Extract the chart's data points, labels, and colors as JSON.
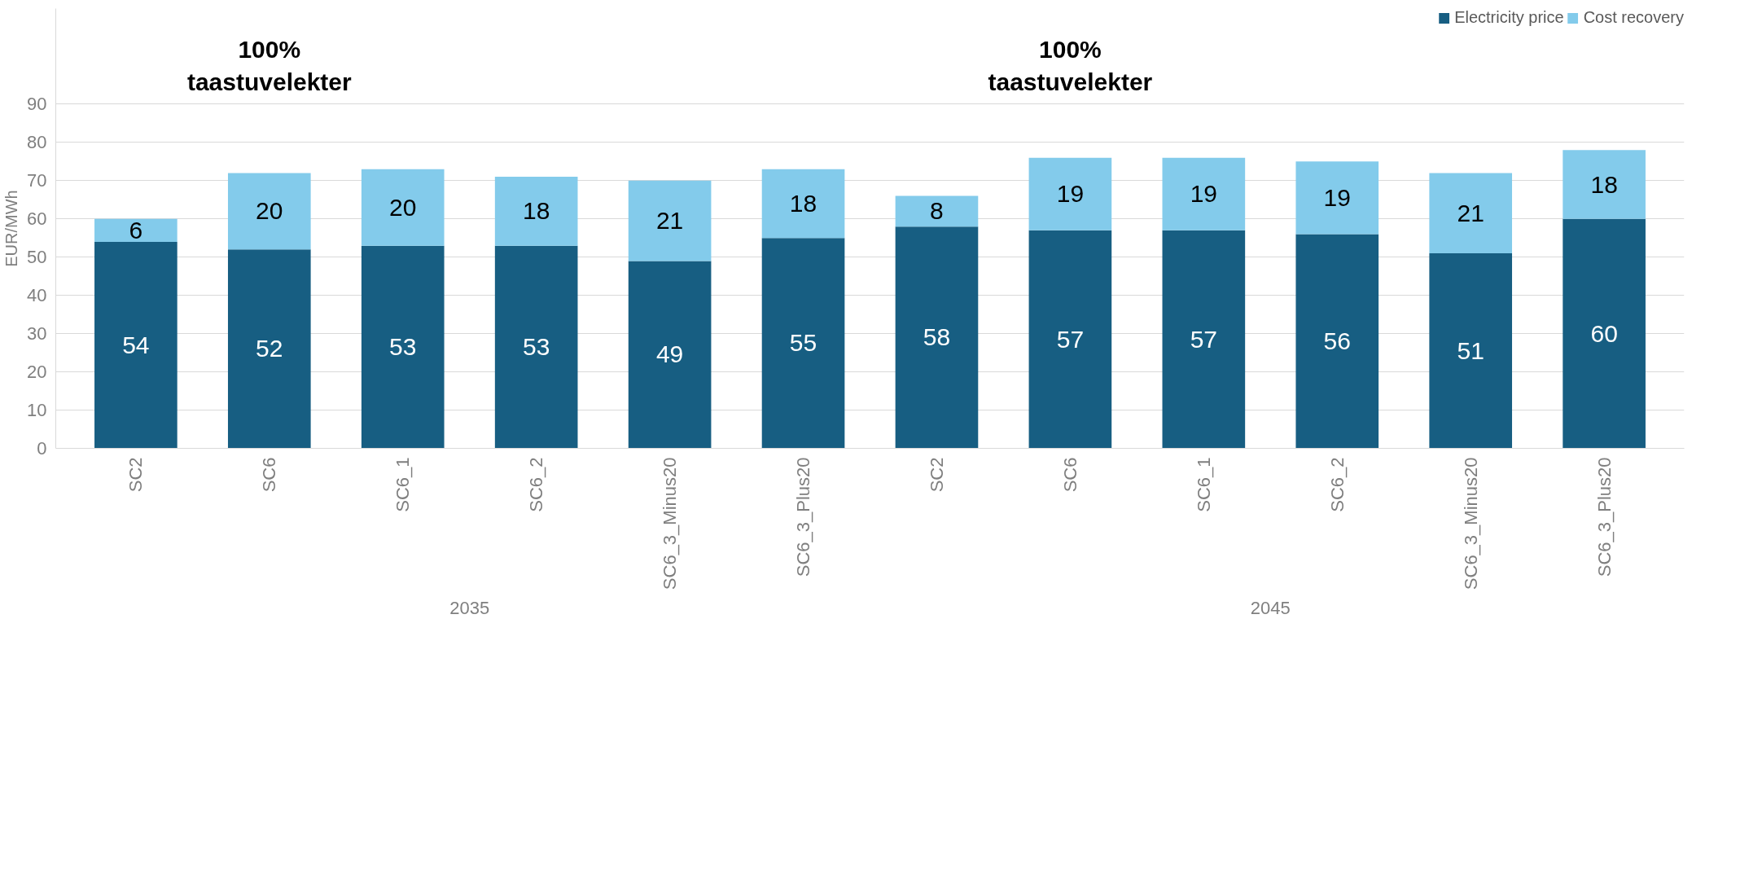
{
  "chart_data": {
    "type": "bar",
    "stacked": true,
    "ylabel": "EUR/MWh",
    "categories": [
      "SC2",
      "SC6",
      "SC6_1",
      "SC6_2",
      "SC6_3_Minus20",
      "SC6_3_Plus20",
      "SC2",
      "SC6",
      "SC6_1",
      "SC6_2",
      "SC6_3_Minus20",
      "SC6_3_Plus20"
    ],
    "series": [
      {
        "name": "Electricity price",
        "color": "#175e82",
        "values": [
          54,
          52,
          53,
          53,
          49,
          55,
          58,
          57,
          57,
          56,
          51,
          60
        ]
      },
      {
        "name": "Cost recovery",
        "color": "#83cbeb",
        "values": [
          6,
          20,
          20,
          18,
          21,
          18,
          8,
          19,
          19,
          19,
          21,
          18
        ]
      }
    ],
    "ylim": [
      0,
      115
    ],
    "yticks": [
      0,
      10,
      20,
      30,
      40,
      50,
      60,
      70,
      80,
      90
    ],
    "grid": "y",
    "legend": "top right",
    "data_labels": true,
    "annotations": [
      "2035",
      "2045",
      "100%\ntaastuvelekter",
      "100%\ntaastuvelekter"
    ]
  }
}
